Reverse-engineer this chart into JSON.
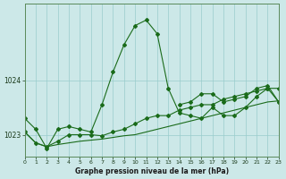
{
  "background_color": "#cce8e8",
  "plot_bg_color": "#cce8e8",
  "grid_color": "#99cccc",
  "line_color": "#1a6b1a",
  "xlabel": "Graphe pression niveau de la mer (hPa)",
  "ylim": [
    1022.6,
    1025.4
  ],
  "yticks": [
    1023,
    1024
  ],
  "xlim": [
    0,
    23
  ],
  "xticks": [
    0,
    1,
    2,
    3,
    4,
    5,
    6,
    7,
    8,
    9,
    10,
    11,
    12,
    13,
    14,
    15,
    16,
    17,
    18,
    19,
    20,
    21,
    22,
    23
  ],
  "series": [
    {
      "x": [
        0,
        1,
        2,
        3,
        4,
        5,
        6,
        7,
        8,
        9,
        10,
        11,
        12,
        13,
        14,
        15,
        16,
        17,
        18,
        19,
        20,
        21,
        22,
        23
      ],
      "y": [
        1023.3,
        1023.1,
        1022.75,
        1023.1,
        1023.15,
        1023.1,
        1023.05,
        1023.55,
        1024.15,
        1024.65,
        1025.0,
        1025.1,
        1024.85,
        1023.85,
        1023.4,
        1023.35,
        1023.3,
        1023.5,
        1023.35,
        1023.35,
        1023.5,
        1023.7,
        1023.85,
        1023.6
      ],
      "marker": "D",
      "markersize": 2.0,
      "linewidth": 0.8
    },
    {
      "x": [
        0,
        1,
        2,
        3,
        4,
        5,
        6,
        7,
        8,
        9,
        10,
        11,
        12,
        13,
        14,
        15,
        16,
        17,
        18,
        19,
        20,
        21,
        22,
        23
      ],
      "y": [
        1023.05,
        1022.85,
        1022.78,
        1022.82,
        1022.85,
        1022.88,
        1022.9,
        1022.92,
        1022.95,
        1022.98,
        1023.0,
        1023.05,
        1023.1,
        1023.15,
        1023.2,
        1023.25,
        1023.3,
        1023.35,
        1023.4,
        1023.45,
        1023.5,
        1023.55,
        1023.6,
        1023.62
      ],
      "marker": null,
      "markersize": 0,
      "linewidth": 0.8
    },
    {
      "x": [
        0,
        1,
        2,
        3,
        4,
        5,
        6,
        7,
        8,
        9,
        10,
        11,
        12,
        13,
        14,
        15,
        16,
        17,
        18,
        19,
        20,
        21,
        22,
        23
      ],
      "y": [
        1023.05,
        1022.85,
        1022.78,
        1022.88,
        1023.0,
        1023.0,
        1023.0,
        1022.98,
        1023.05,
        1023.1,
        1023.2,
        1023.3,
        1023.35,
        1023.35,
        1023.45,
        1023.5,
        1023.55,
        1023.55,
        1023.65,
        1023.7,
        1023.75,
        1023.8,
        1023.85,
        1023.85
      ],
      "marker": "D",
      "markersize": 2.0,
      "linewidth": 0.8
    },
    {
      "x": [
        14,
        15,
        16,
        17,
        18,
        19,
        20,
        21,
        22,
        23
      ],
      "y": [
        1023.55,
        1023.6,
        1023.75,
        1023.75,
        1023.6,
        1023.65,
        1023.7,
        1023.85,
        1023.9,
        1023.6
      ],
      "marker": "D",
      "markersize": 2.0,
      "linewidth": 0.8
    }
  ]
}
